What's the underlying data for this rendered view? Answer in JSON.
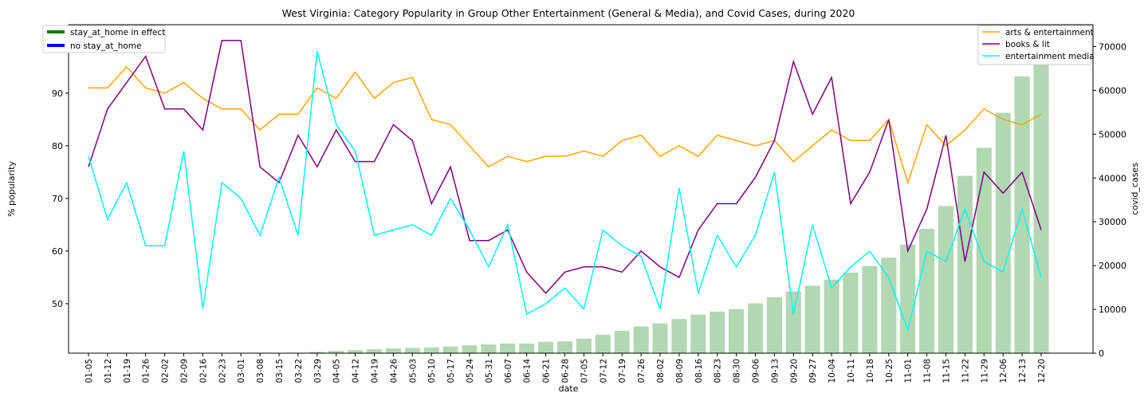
{
  "chart_data": {
    "type": "line",
    "title": "West Virginia: Category Popularity in Group Other Entertainment (General & Media), and Covid Cases, during 2020",
    "xlabel": "date",
    "ylabel": "% popularity",
    "y2label": "covid_cases",
    "ylim": [
      40.6,
      103
    ],
    "y2lim": [
      0,
      75000
    ],
    "yticks": [
      50,
      60,
      70,
      80,
      90,
      100
    ],
    "y2ticks": [
      0,
      10000,
      20000,
      30000,
      40000,
      50000,
      60000,
      70000
    ],
    "grid": false,
    "legend_left": {
      "placement": "top-left",
      "entries": [
        {
          "label": "stay_at_home in effect",
          "color": "#008000"
        },
        {
          "label": "no stay_at_home",
          "color": "#0000ff"
        }
      ]
    },
    "legend_right_placement": "top-right",
    "categories": [
      "01-05",
      "01-12",
      "01-19",
      "01-26",
      "02-02",
      "02-09",
      "02-16",
      "02-23",
      "03-01",
      "03-08",
      "03-15",
      "03-22",
      "03-29",
      "04-05",
      "04-12",
      "04-19",
      "04-26",
      "05-03",
      "05-10",
      "05-17",
      "05-24",
      "05-31",
      "06-07",
      "06-14",
      "06-21",
      "06-28",
      "07-05",
      "07-12",
      "07-19",
      "07-26",
      "08-02",
      "08-09",
      "08-16",
      "08-23",
      "08-30",
      "09-06",
      "09-13",
      "09-20",
      "09-27",
      "10-04",
      "10-11",
      "10-18",
      "10-25",
      "11-01",
      "11-08",
      "11-15",
      "11-22",
      "11-29",
      "12-06",
      "12-13",
      "12-20"
    ],
    "series": [
      {
        "name": "arts & entertainment",
        "color": "#ffa500",
        "values": [
          91,
          91,
          95,
          91,
          90,
          92,
          89,
          87,
          87,
          83,
          86,
          86,
          91,
          89,
          94,
          89,
          92,
          93,
          85,
          84,
          80,
          76,
          78,
          77,
          78,
          78,
          79,
          78,
          81,
          82,
          78,
          80,
          78,
          82,
          81,
          80,
          81,
          77,
          80,
          83,
          81,
          81,
          85,
          73,
          84,
          80,
          83,
          87,
          85,
          84,
          86
        ]
      },
      {
        "name": "books & lit",
        "color": "#800080",
        "values": [
          76,
          87,
          92,
          97,
          87,
          87,
          83,
          100,
          100,
          76,
          73,
          82,
          76,
          83,
          77,
          77,
          84,
          81,
          69,
          76,
          62,
          62,
          64,
          56,
          52,
          56,
          57,
          57,
          56,
          60,
          57,
          55,
          64,
          69,
          69,
          74,
          81,
          96,
          86,
          93,
          69,
          75,
          85,
          60,
          68,
          82,
          58,
          75,
          71,
          75,
          64
        ]
      },
      {
        "name": "entertainment media",
        "color": "#00ffff",
        "values": [
          78,
          66,
          73,
          61,
          61,
          79,
          49,
          73,
          70,
          63,
          74,
          63,
          98,
          84,
          79,
          63,
          64,
          65,
          63,
          70,
          64,
          57,
          65,
          48,
          50,
          53,
          49,
          64,
          61,
          59,
          49,
          72,
          52,
          63,
          57,
          63,
          75,
          48,
          65,
          53,
          57,
          60,
          55,
          45,
          60,
          58,
          68,
          58,
          56,
          68,
          55
        ]
      }
    ],
    "bars": {
      "name": "covid_cases",
      "color": "#b2d8b2",
      "values": [
        0,
        0,
        0,
        0,
        0,
        0,
        0,
        0,
        0,
        0,
        0,
        100,
        300,
        500,
        700,
        900,
        1100,
        1200,
        1300,
        1500,
        1800,
        2000,
        2200,
        2200,
        2600,
        2700,
        3300,
        4200,
        5100,
        6100,
        6800,
        7800,
        8800,
        9500,
        10100,
        11400,
        12800,
        14100,
        15400,
        16800,
        18400,
        19900,
        21800,
        24800,
        28400,
        33600,
        40500,
        46900,
        54900,
        63200,
        72400
      ]
    }
  }
}
